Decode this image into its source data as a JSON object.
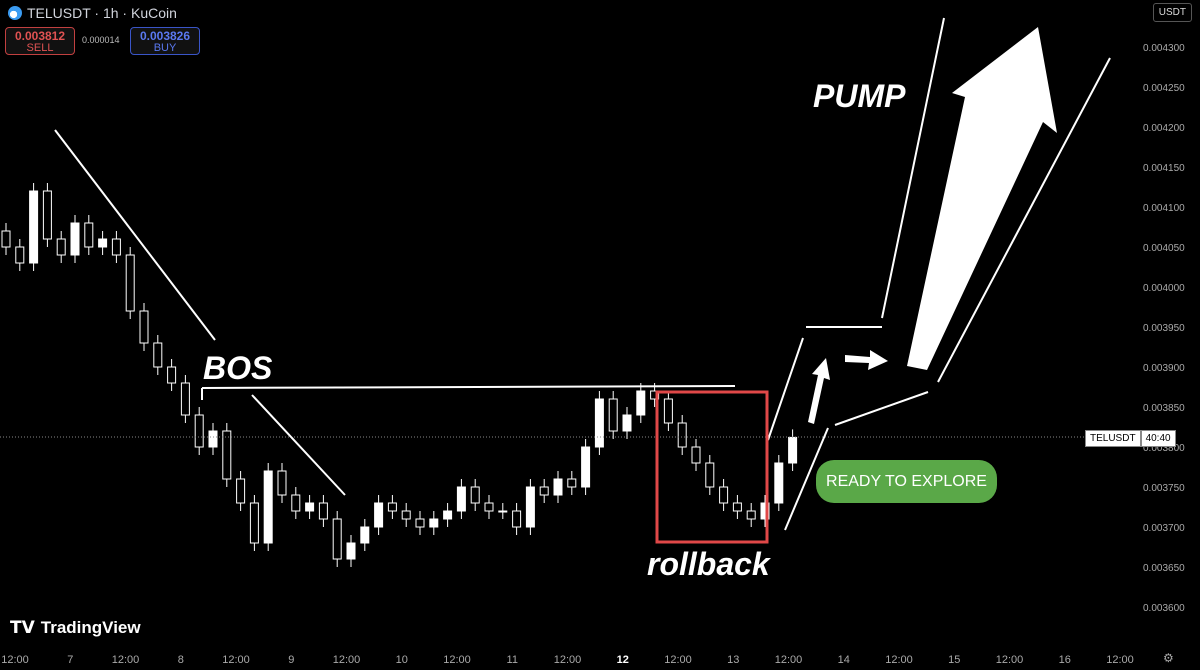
{
  "header": {
    "title": "TELUSDT · 1h · KuCoin",
    "sell_price": "0.003812",
    "sell_label": "SELL",
    "spread": "0.000014",
    "buy_price": "0.003826",
    "buy_label": "BUY",
    "currency": "USDT"
  },
  "branding": {
    "name": "TradingView"
  },
  "price_tag": {
    "symbol": "TELUSDT",
    "countdown": "40:40"
  },
  "annotations": {
    "bos": "BOS",
    "pump": "PUMP",
    "rollback": "rollback",
    "cta": "READY TO EXPLORE"
  },
  "colors": {
    "up": "#ffffff",
    "down": "#000000",
    "wick": "#ffffff",
    "cta": "#5aa848",
    "box": "#e04848"
  },
  "chart_data": {
    "type": "candlestick",
    "y_ticks": [
      "0.004300",
      "0.004250",
      "0.004200",
      "0.004150",
      "0.004100",
      "0.004050",
      "0.004000",
      "0.003950",
      "0.003900",
      "0.003850",
      "0.003800",
      "0.003750",
      "0.003700",
      "0.003650",
      "0.003600"
    ],
    "ylim": [
      0.00357,
      0.00433
    ],
    "x_ticks": [
      "12:00",
      "7",
      "12:00",
      "8",
      "12:00",
      "9",
      "12:00",
      "10",
      "12:00",
      "11",
      "12:00",
      "12",
      "12:00",
      "13",
      "12:00",
      "14",
      "12:00",
      "15",
      "12:00",
      "16",
      "12:00"
    ],
    "last_price": 0.003812,
    "first_open": 0.00407,
    "closes": [
      0.00405,
      0.00403,
      0.00412,
      0.00406,
      0.00404,
      0.00408,
      0.00405,
      0.00406,
      0.00404,
      0.00397,
      0.00393,
      0.0039,
      0.00388,
      0.00384,
      0.0038,
      0.00382,
      0.00376,
      0.00373,
      0.00368,
      0.00377,
      0.00374,
      0.00372,
      0.00373,
      0.00371,
      0.00366,
      0.00368,
      0.0037,
      0.00373,
      0.00372,
      0.00371,
      0.0037,
      0.00371,
      0.00372,
      0.00375,
      0.00373,
      0.00372,
      0.00372,
      0.0037,
      0.00375,
      0.00374,
      0.00376,
      0.00375,
      0.0038,
      0.00386,
      0.00382,
      0.00384,
      0.00387,
      0.00386,
      0.00383,
      0.0038,
      0.00378,
      0.00375,
      0.00373,
      0.00372,
      0.00371,
      0.00373,
      0.00378,
      0.003812
    ]
  }
}
